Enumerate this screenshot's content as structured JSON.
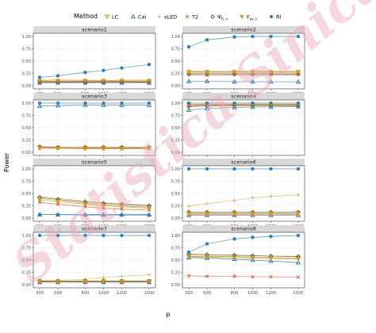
{
  "legend": {
    "title": "Method",
    "items": [
      {
        "label": "LC",
        "color": "#b38c00",
        "shape": "tri-down"
      },
      {
        "label": "Cai",
        "color": "#1f6fb4",
        "shape": "tri-up"
      },
      {
        "label": "sLED",
        "color": "#e0a95a",
        "shape": "plus"
      },
      {
        "label": "T2",
        "color": "#e8502f",
        "shape": "cross"
      },
      {
        "label": "Ψ",
        "color": "#555555",
        "shape": "diamond",
        "sub": "R, n"
      },
      {
        "label": "F",
        "color": "#d49a00",
        "shape": "tri-down-fill",
        "sub": "ex, n"
      },
      {
        "label": "RI",
        "color": "#2b7fc9",
        "shape": "circle"
      }
    ]
  },
  "watermark": "Statistica Sinica",
  "chart_data": {
    "type": "line",
    "ylabel": "Power",
    "xlabel": "p",
    "x": [
      300,
      500,
      800,
      1000,
      1200,
      1500
    ],
    "ylim": [
      0,
      1
    ],
    "yticks": [
      "0.00",
      "0.25",
      "0.50",
      "0.75",
      "1.00"
    ],
    "panels": [
      {
        "title": "scenario1",
        "series": [
          {
            "name": "LC",
            "values": [
              0.09,
              0.09,
              0.09,
              0.09,
              0.09,
              0.09
            ]
          },
          {
            "name": "Cai",
            "values": [
              0.06,
              0.06,
              0.06,
              0.06,
              0.06,
              0.06
            ]
          },
          {
            "name": "sLED",
            "values": [
              0.11,
              0.12,
              0.11,
              0.11,
              0.11,
              0.12
            ]
          },
          {
            "name": "T2",
            "values": [
              0.07,
              0.07,
              0.07,
              0.07,
              0.07,
              0.07
            ]
          },
          {
            "name": "Ψ",
            "values": [
              0.08,
              0.08,
              0.08,
              0.08,
              0.08,
              0.08
            ]
          },
          {
            "name": "F",
            "values": [
              0.1,
              0.1,
              0.1,
              0.1,
              0.1,
              0.1
            ]
          },
          {
            "name": "RI",
            "values": [
              0.17,
              0.2,
              0.27,
              0.31,
              0.36,
              0.43
            ]
          }
        ]
      },
      {
        "title": "scenario2",
        "series": [
          {
            "name": "LC",
            "values": [
              0.28,
              0.28,
              0.28,
              0.28,
              0.28,
              0.28
            ]
          },
          {
            "name": "Cai",
            "values": [
              0.09,
              0.09,
              0.08,
              0.08,
              0.08,
              0.08
            ]
          },
          {
            "name": "sLED",
            "values": [
              0.3,
              0.29,
              0.29,
              0.3,
              0.29,
              0.29
            ]
          },
          {
            "name": "T2",
            "values": [
              0.22,
              0.21,
              0.22,
              0.22,
              0.22,
              0.22
            ]
          },
          {
            "name": "Ψ",
            "values": [
              0.24,
              0.24,
              0.24,
              0.24,
              0.24,
              0.24
            ]
          },
          {
            "name": "F",
            "values": [
              0.26,
              0.26,
              0.26,
              0.26,
              0.26,
              0.26
            ]
          },
          {
            "name": "RI",
            "values": [
              0.79,
              0.93,
              0.99,
              1.0,
              1.0,
              1.0
            ]
          }
        ]
      },
      {
        "title": "scenario3",
        "series": [
          {
            "name": "LC",
            "values": [
              0.1,
              0.09,
              0.09,
              0.09,
              0.09,
              0.09
            ]
          },
          {
            "name": "Cai",
            "values": [
              0.94,
              0.95,
              0.96,
              0.96,
              0.96,
              0.96
            ]
          },
          {
            "name": "sLED",
            "values": [
              0.12,
              0.1,
              0.1,
              0.09,
              0.09,
              0.09
            ]
          },
          {
            "name": "T2",
            "values": [
              0.08,
              0.08,
              0.07,
              0.07,
              0.07,
              0.07
            ]
          },
          {
            "name": "Ψ",
            "values": [
              0.11,
              0.1,
              0.1,
              0.1,
              0.1,
              0.1
            ]
          },
          {
            "name": "F",
            "values": [
              0.09,
              0.08,
              0.08,
              0.08,
              0.08,
              0.08
            ]
          },
          {
            "name": "RI",
            "values": [
              1.0,
              1.0,
              1.0,
              1.0,
              1.0,
              1.0
            ]
          }
        ]
      },
      {
        "title": "scenario4",
        "series": [
          {
            "name": "LC",
            "values": [
              0.96,
              0.97,
              0.97,
              0.97,
              0.97,
              0.97
            ]
          },
          {
            "name": "Cai",
            "values": [
              0.86,
              0.89,
              0.91,
              0.92,
              0.92,
              0.93
            ]
          },
          {
            "name": "sLED",
            "values": [
              0.97,
              0.98,
              0.98,
              0.98,
              0.98,
              0.98
            ]
          },
          {
            "name": "T2",
            "values": [
              0.95,
              0.96,
              0.96,
              0.96,
              0.96,
              0.96
            ]
          },
          {
            "name": "Ψ",
            "values": [
              0.93,
              0.94,
              0.95,
              0.95,
              0.95,
              0.95
            ]
          },
          {
            "name": "F",
            "values": [
              0.97,
              0.97,
              0.97,
              0.97,
              0.97,
              0.97
            ]
          },
          {
            "name": "RI",
            "values": [
              1.0,
              1.0,
              1.0,
              1.0,
              1.0,
              1.0
            ]
          }
        ]
      },
      {
        "title": "scenario5",
        "series": [
          {
            "name": "LC",
            "values": [
              0.4,
              0.36,
              0.3,
              0.27,
              0.25,
              0.22
            ]
          },
          {
            "name": "Cai",
            "values": [
              0.07,
              0.07,
              0.07,
              0.07,
              0.07,
              0.07
            ]
          },
          {
            "name": "sLED",
            "values": [
              0.44,
              0.4,
              0.34,
              0.31,
              0.29,
              0.26
            ]
          },
          {
            "name": "T2",
            "values": [
              0.32,
              0.28,
              0.23,
              0.2,
              0.18,
              0.16
            ]
          },
          {
            "name": "Ψ",
            "values": [
              0.42,
              0.38,
              0.33,
              0.3,
              0.28,
              0.25
            ]
          },
          {
            "name": "F",
            "values": [
              0.37,
              0.33,
              0.28,
              0.25,
              0.23,
              0.2
            ]
          },
          {
            "name": "RI",
            "values": [
              0.07,
              0.07,
              0.06,
              0.06,
              0.06,
              0.06
            ]
          }
        ]
      },
      {
        "title": "scenario6",
        "series": [
          {
            "name": "LC",
            "values": [
              0.1,
              0.1,
              0.1,
              0.1,
              0.1,
              0.1
            ]
          },
          {
            "name": "Cai",
            "values": [
              0.06,
              0.06,
              0.06,
              0.06,
              0.06,
              0.06
            ]
          },
          {
            "name": "sLED",
            "values": [
              0.24,
              0.29,
              0.36,
              0.41,
              0.44,
              0.47
            ]
          },
          {
            "name": "T2",
            "values": [
              0.08,
              0.08,
              0.08,
              0.08,
              0.08,
              0.08
            ]
          },
          {
            "name": "Ψ",
            "values": [
              0.12,
              0.12,
              0.12,
              0.12,
              0.12,
              0.12
            ]
          },
          {
            "name": "F",
            "values": [
              0.09,
              0.09,
              0.09,
              0.09,
              0.09,
              0.09
            ]
          },
          {
            "name": "RI",
            "values": [
              1.0,
              1.0,
              1.0,
              1.0,
              1.0,
              1.0
            ]
          }
        ]
      },
      {
        "title": "scenario7",
        "series": [
          {
            "name": "LC",
            "values": [
              0.07,
              0.07,
              0.07,
              0.07,
              0.07,
              0.07
            ]
          },
          {
            "name": "Cai",
            "values": [
              0.05,
              0.05,
              0.05,
              0.05,
              0.05,
              0.05
            ]
          },
          {
            "name": "sLED",
            "values": [
              0.08,
              0.09,
              0.11,
              0.14,
              0.17,
              0.2
            ]
          },
          {
            "name": "T2",
            "values": [
              0.06,
              0.06,
              0.06,
              0.06,
              0.06,
              0.06
            ]
          },
          {
            "name": "Ψ",
            "values": [
              0.07,
              0.07,
              0.07,
              0.07,
              0.07,
              0.07
            ]
          },
          {
            "name": "F",
            "values": [
              0.06,
              0.06,
              0.06,
              0.06,
              0.06,
              0.06
            ]
          },
          {
            "name": "RI",
            "values": [
              1.0,
              1.0,
              1.0,
              1.0,
              1.0,
              1.0
            ]
          }
        ]
      },
      {
        "title": "scenario8",
        "series": [
          {
            "name": "LC",
            "values": [
              0.58,
              0.57,
              0.57,
              0.56,
              0.55,
              0.54
            ]
          },
          {
            "name": "Cai",
            "values": [
              0.55,
              0.54,
              0.52,
              0.5,
              0.48,
              0.45
            ]
          },
          {
            "name": "sLED",
            "values": [
              0.6,
              0.6,
              0.59,
              0.59,
              0.58,
              0.58
            ]
          },
          {
            "name": "T2",
            "values": [
              0.18,
              0.17,
              0.17,
              0.16,
              0.16,
              0.15
            ]
          },
          {
            "name": "Ψ",
            "values": [
              0.62,
              0.61,
              0.6,
              0.59,
              0.58,
              0.57
            ]
          },
          {
            "name": "F",
            "values": [
              0.57,
              0.56,
              0.55,
              0.54,
              0.53,
              0.52
            ]
          },
          {
            "name": "RI",
            "values": [
              0.66,
              0.83,
              0.93,
              0.96,
              0.98,
              1.0
            ]
          }
        ]
      }
    ]
  }
}
